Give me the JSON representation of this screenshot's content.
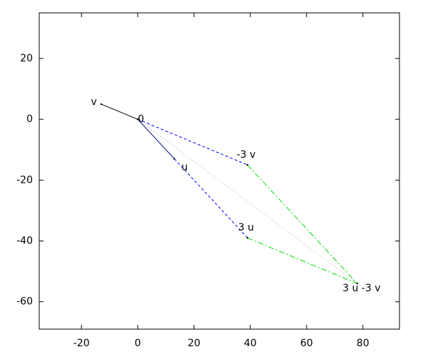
{
  "chart_data": {
    "type": "vector",
    "points": [
      {
        "label": "0",
        "x": 0,
        "y": 0
      },
      {
        "label": "v",
        "x": -13,
        "y": 5
      },
      {
        "label": "u",
        "x": 13,
        "y": -13
      },
      {
        "label": "-3 v",
        "x": 39,
        "y": -15
      },
      {
        "label": "3 u",
        "x": 39,
        "y": -39
      },
      {
        "label": "3 u -3 v",
        "x": 78,
        "y": -54
      }
    ],
    "segments": [
      {
        "from": 0,
        "to": 1,
        "color": "#000000",
        "style": "solid"
      },
      {
        "from": 0,
        "to": 2,
        "color": "#000080",
        "style": "solid"
      },
      {
        "from": 0,
        "to": 3,
        "color": "#0000ff",
        "style": "dashed"
      },
      {
        "from": 2,
        "to": 4,
        "color": "#0000ff",
        "style": "dashed"
      },
      {
        "from": 3,
        "to": 5,
        "color": "#00dd00",
        "style": "dashdot"
      },
      {
        "from": 4,
        "to": 5,
        "color": "#00dd00",
        "style": "dashdot"
      },
      {
        "from": 0,
        "to": 5,
        "color": "#aaaaaa",
        "style": "dotted"
      }
    ],
    "xlim": [
      -35,
      93
    ],
    "ylim": [
      -69,
      35
    ],
    "xticks": [
      -20,
      0,
      20,
      40,
      60,
      80
    ],
    "yticks": [
      -60,
      -40,
      -20,
      0,
      20
    ]
  }
}
